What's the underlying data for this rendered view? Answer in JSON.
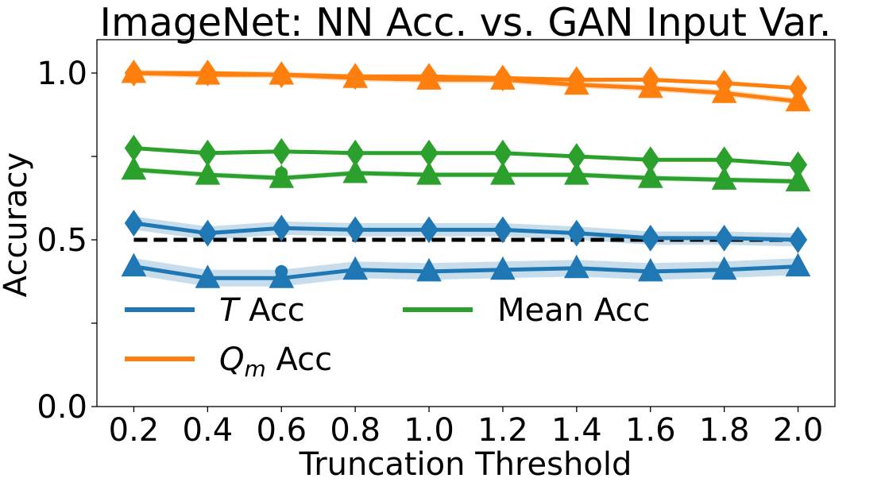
{
  "chart_data": {
    "type": "line",
    "title": "ImageNet: NN Acc. vs. GAN Input Var.",
    "xlabel": "Truncation Threshold",
    "ylabel": "Accuracy",
    "xlim": [
      0.1,
      2.1
    ],
    "ylim": [
      0.0,
      1.1
    ],
    "x": [
      0.2,
      0.4,
      0.6,
      0.8,
      1.0,
      1.2,
      1.4,
      1.6,
      1.8,
      2.0
    ],
    "x_tick_labels": [
      "0.2",
      "0.4",
      "0.6",
      "0.8",
      "1.0",
      "1.2",
      "1.4",
      "1.6",
      "1.8",
      "2.0"
    ],
    "y_ticks": [
      0.0,
      0.25,
      0.5,
      0.75,
      1.0
    ],
    "y_tick_labels": [
      "0.0",
      "",
      "0.5",
      "",
      "1.0"
    ],
    "grid": false,
    "legend_position": "lower-left",
    "reference_line": {
      "y": 0.5,
      "style": "dashed",
      "color": "#000000"
    },
    "legend": [
      {
        "prefix": "T",
        "suffix": " Acc",
        "subscript": "",
        "color": "#1f77b4"
      },
      {
        "prefix": "Mean Acc",
        "suffix": "",
        "subscript": "",
        "color": "#2ca02c"
      },
      {
        "prefix": "Q",
        "suffix": " Acc",
        "subscript": "m",
        "color": "#ff7f0e"
      }
    ],
    "series": [
      {
        "color": "#ff7f0e",
        "marker": "diamond",
        "values": [
          1.0,
          1.0,
          0.995,
          0.99,
          0.99,
          0.985,
          0.98,
          0.98,
          0.97,
          0.955
        ],
        "band": 0.005
      },
      {
        "color": "#ff7f0e",
        "marker": "triangle",
        "values": [
          1.0,
          0.995,
          0.995,
          0.985,
          0.98,
          0.98,
          0.965,
          0.955,
          0.94,
          0.915
        ],
        "band": 0.01
      },
      {
        "color": "#2ca02c",
        "marker": "diamond",
        "values": [
          0.775,
          0.76,
          0.765,
          0.76,
          0.76,
          0.76,
          0.75,
          0.74,
          0.74,
          0.725
        ],
        "band": 0.005
      },
      {
        "color": "#2ca02c",
        "marker": "triangle",
        "values": [
          0.71,
          0.695,
          0.685,
          0.7,
          0.695,
          0.695,
          0.695,
          0.685,
          0.68,
          0.675
        ],
        "band": 0.008
      },
      {
        "color": "#1f77b4",
        "marker": "diamond",
        "values": [
          0.55,
          0.52,
          0.535,
          0.53,
          0.53,
          0.53,
          0.52,
          0.505,
          0.505,
          0.5
        ],
        "band": 0.02
      },
      {
        "color": "#1f77b4",
        "marker": "triangle",
        "values": [
          0.42,
          0.385,
          0.385,
          0.41,
          0.405,
          0.41,
          0.415,
          0.405,
          0.41,
          0.42
        ],
        "band": 0.025
      }
    ],
    "extra_dots": [
      {
        "color": "#1f77b4",
        "points": [
          [
            0.6,
            0.405
          ]
        ]
      },
      {
        "color": "#2ca02c",
        "points": [
          [
            0.6,
            0.7
          ]
        ]
      }
    ]
  }
}
